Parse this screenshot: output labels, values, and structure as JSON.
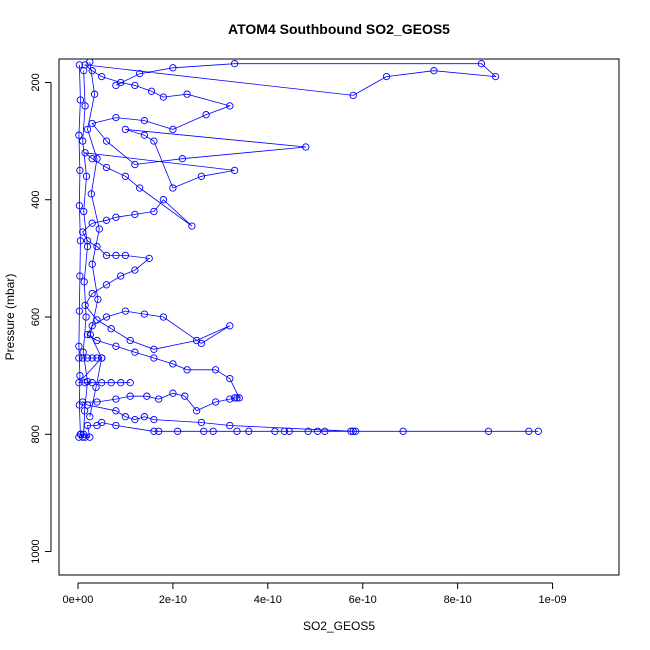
{
  "chart_data": {
    "type": "line",
    "title": "ATOM4 Southbound SO2_GEOS5",
    "xlabel": "SO2_GEOS5",
    "ylabel": "Pressure (mbar)",
    "xlim": [
      -4e-11,
      1.14e-09
    ],
    "ylim": [
      1040,
      160
    ],
    "y_reversed": true,
    "x_ticks": [
      0,
      2e-10,
      4e-10,
      6e-10,
      8e-10,
      1e-09
    ],
    "x_tick_labels": [
      "0e+00",
      "2e-10",
      "4e-10",
      "6e-10",
      "8e-10",
      "1e-09"
    ],
    "y_ticks": [
      200,
      400,
      600,
      800,
      1000
    ],
    "y_tick_labels": [
      "200",
      "400",
      "600",
      "800",
      "1000"
    ],
    "marker": "open-circle",
    "grid": false,
    "legend": "none",
    "colors": {
      "series": "#0000ff",
      "axis": "#000000",
      "background": "#ffffff"
    },
    "series": [
      {
        "points": [
          [
            2e-12,
            805
          ],
          [
            6e-12,
            800
          ],
          [
            1e-11,
            805
          ],
          [
            1.5e-11,
            805
          ],
          [
            2.5e-11,
            805
          ],
          [
            2e-11,
            785
          ],
          [
            4e-11,
            785
          ],
          [
            5e-11,
            780
          ],
          [
            8e-11,
            785
          ],
          [
            1.6e-10,
            795
          ],
          [
            1.7e-10,
            795
          ],
          [
            2.1e-10,
            795
          ],
          [
            2.65e-10,
            795
          ],
          [
            2.85e-10,
            795
          ],
          [
            3.35e-10,
            795
          ],
          [
            3.6e-10,
            795
          ],
          [
            4.15e-10,
            795
          ],
          [
            4.35e-10,
            795
          ],
          [
            4.45e-10,
            795
          ],
          [
            4.85e-10,
            795
          ],
          [
            5.05e-10,
            795
          ],
          [
            5.2e-10,
            795
          ],
          [
            5.75e-10,
            795
          ],
          [
            5.85e-10,
            795
          ],
          [
            6.85e-10,
            795
          ],
          [
            8.65e-10,
            795
          ],
          [
            9.5e-10,
            795
          ],
          [
            9.7e-10,
            795
          ],
          [
            5.8e-10,
            795
          ],
          [
            3.2e-10,
            785
          ],
          [
            2.6e-10,
            780
          ],
          [
            1.6e-10,
            775
          ],
          [
            1.4e-10,
            770
          ],
          [
            1.2e-10,
            775
          ],
          [
            1e-10,
            770
          ],
          [
            8e-11,
            760
          ],
          [
            2e-11,
            750
          ],
          [
            1e-11,
            745
          ],
          [
            4e-11,
            745
          ],
          [
            8e-11,
            740
          ],
          [
            1.1e-10,
            735
          ],
          [
            1.45e-10,
            735
          ],
          [
            1.7e-10,
            740
          ],
          [
            2e-10,
            730
          ],
          [
            2.25e-10,
            735
          ],
          [
            2.5e-10,
            760
          ],
          [
            2.9e-10,
            745
          ],
          [
            3.2e-10,
            740
          ],
          [
            3.3e-10,
            738
          ],
          [
            3.35e-10,
            738
          ],
          [
            3.4e-10,
            738
          ],
          [
            3.2e-10,
            705
          ],
          [
            2.9e-10,
            690
          ],
          [
            2.3e-10,
            690
          ],
          [
            2e-10,
            680
          ],
          [
            1.6e-10,
            670
          ],
          [
            1.2e-10,
            660
          ],
          [
            8e-11,
            650
          ],
          [
            4e-11,
            640
          ],
          [
            2e-11,
            630
          ],
          [
            3e-11,
            615
          ],
          [
            6e-11,
            600
          ],
          [
            1e-10,
            590
          ],
          [
            1.4e-10,
            595
          ],
          [
            1.8e-10,
            600
          ],
          [
            2.6e-10,
            645
          ],
          [
            3.2e-10,
            615
          ],
          [
            2.5e-10,
            640
          ],
          [
            1.6e-10,
            655
          ],
          [
            1.1e-10,
            640
          ],
          [
            7e-11,
            620
          ],
          [
            4e-11,
            605
          ],
          [
            1.5e-11,
            580
          ],
          [
            3e-11,
            560
          ],
          [
            6e-11,
            545
          ],
          [
            9e-11,
            530
          ],
          [
            1.2e-10,
            520
          ],
          [
            1.5e-10,
            500
          ],
          [
            1e-10,
            495
          ],
          [
            8e-11,
            495
          ],
          [
            6e-11,
            495
          ],
          [
            4e-11,
            480
          ],
          [
            2e-11,
            470
          ],
          [
            1e-11,
            455
          ],
          [
            3e-11,
            440
          ],
          [
            6e-11,
            435
          ],
          [
            8e-11,
            430
          ],
          [
            1.2e-10,
            425
          ],
          [
            1.6e-10,
            420
          ],
          [
            1.8e-10,
            400
          ],
          [
            2.4e-10,
            445
          ],
          [
            1.3e-10,
            380
          ],
          [
            1e-10,
            360
          ],
          [
            6e-11,
            345
          ],
          [
            3e-11,
            330
          ],
          [
            1.5e-11,
            320
          ],
          [
            3.3e-10,
            350
          ],
          [
            2.6e-10,
            360
          ],
          [
            2e-10,
            380
          ],
          [
            1.6e-10,
            300
          ],
          [
            1.4e-10,
            290
          ],
          [
            1e-10,
            280
          ],
          [
            4.8e-10,
            310
          ],
          [
            2.2e-10,
            330
          ],
          [
            1.2e-10,
            340
          ],
          [
            6e-11,
            300
          ],
          [
            3e-11,
            270
          ],
          [
            8e-11,
            260
          ],
          [
            1.4e-10,
            265
          ],
          [
            2e-10,
            280
          ],
          [
            2.7e-10,
            255
          ],
          [
            3.2e-10,
            240
          ],
          [
            2.3e-10,
            220
          ],
          [
            1.8e-10,
            225
          ],
          [
            1.55e-10,
            215
          ],
          [
            1.2e-10,
            205
          ],
          [
            9e-11,
            200
          ],
          [
            5e-11,
            190
          ],
          [
            3e-11,
            180
          ],
          [
            1.5e-11,
            170
          ],
          [
            5.8e-10,
            222
          ],
          [
            6.5e-10,
            190
          ],
          [
            7.5e-10,
            180
          ],
          [
            8.8e-10,
            190
          ],
          [
            8.5e-10,
            168
          ],
          [
            3.3e-10,
            168
          ],
          [
            2e-10,
            175
          ],
          [
            1.3e-10,
            185
          ],
          [
            8e-11,
            205
          ]
        ]
      },
      {
        "points": [
          [
            3e-12,
            170
          ],
          [
            5e-12,
            230
          ],
          [
            2e-12,
            290
          ],
          [
            4e-12,
            350
          ],
          [
            3e-12,
            410
          ],
          [
            5e-12,
            470
          ],
          [
            4e-12,
            530
          ],
          [
            3e-12,
            590
          ],
          [
            2e-12,
            650
          ],
          [
            4e-12,
            700
          ],
          [
            3e-12,
            750
          ],
          [
            5e-12,
            800
          ]
        ]
      },
      {
        "points": [
          [
            1.2e-11,
            180
          ],
          [
            1.5e-11,
            240
          ],
          [
            1e-11,
            300
          ],
          [
            1.8e-11,
            360
          ],
          [
            1.2e-11,
            420
          ],
          [
            2e-11,
            480
          ],
          [
            1.3e-11,
            540
          ],
          [
            1.7e-11,
            600
          ],
          [
            1.1e-11,
            660
          ],
          [
            2e-11,
            710
          ],
          [
            1.4e-11,
            760
          ],
          [
            1.2e-11,
            800
          ]
        ]
      },
      {
        "points": [
          [
            2.5e-11,
            165
          ],
          [
            3.5e-11,
            220
          ],
          [
            2e-11,
            280
          ],
          [
            4e-11,
            330
          ],
          [
            2.8e-11,
            390
          ],
          [
            4.5e-11,
            450
          ],
          [
            3e-11,
            510
          ],
          [
            4.2e-11,
            570
          ],
          [
            2.6e-11,
            630
          ],
          [
            5e-11,
            670
          ],
          [
            3.8e-11,
            720
          ],
          [
            2.5e-11,
            770
          ]
        ]
      },
      {
        "points": [
          [
            2e-12,
            670
          ],
          [
            1e-11,
            670
          ],
          [
            2e-11,
            670
          ],
          [
            3e-11,
            670
          ],
          [
            4e-11,
            670
          ],
          [
            5e-11,
            670
          ],
          [
            2e-12,
            712
          ],
          [
            1.5e-11,
            712
          ],
          [
            3e-11,
            712
          ],
          [
            5e-11,
            712
          ],
          [
            7e-11,
            712
          ],
          [
            9e-11,
            712
          ],
          [
            1.1e-10,
            712
          ]
        ]
      }
    ]
  }
}
